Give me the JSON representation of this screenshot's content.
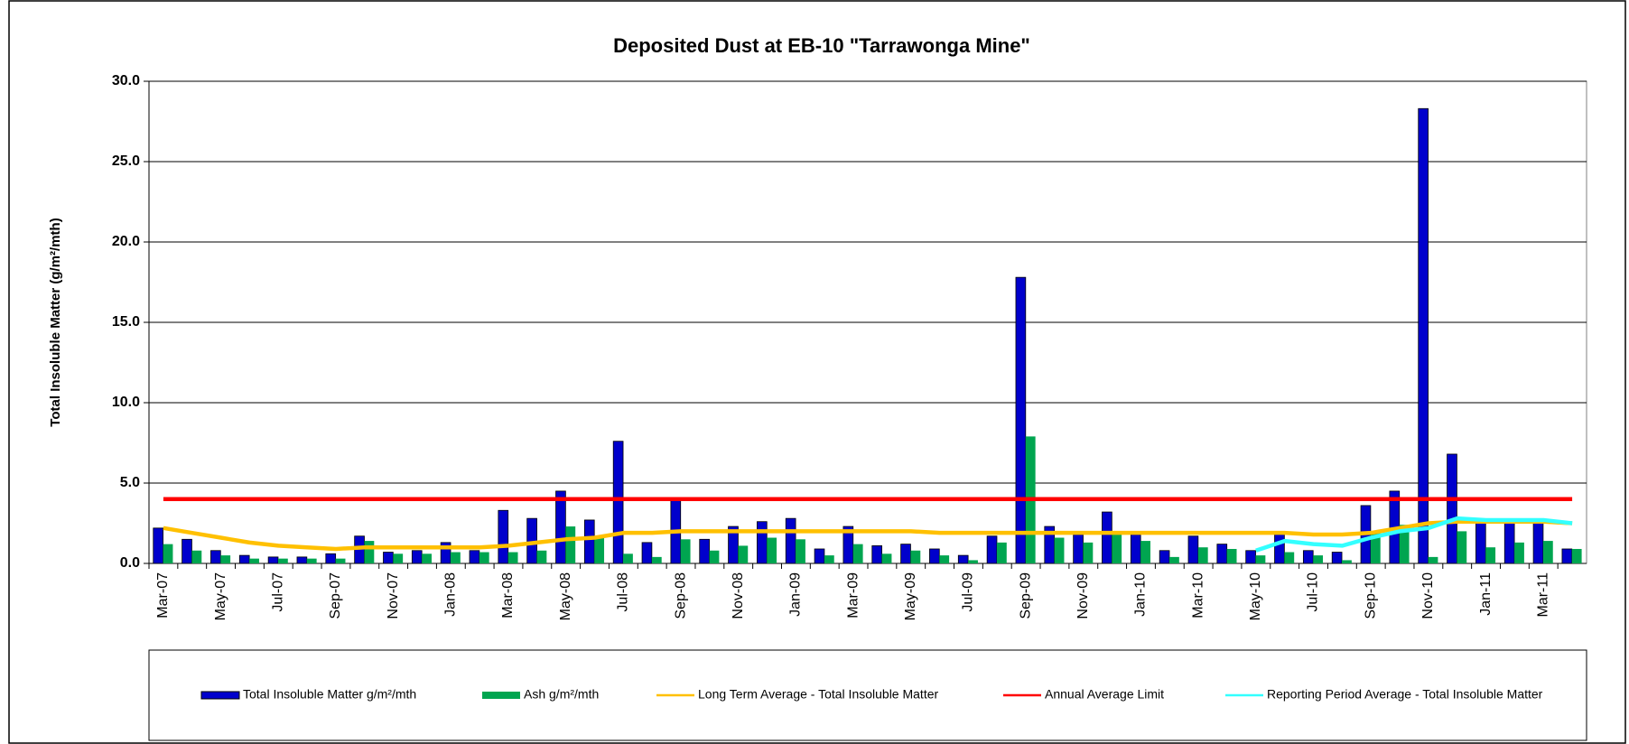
{
  "chart_data": {
    "type": "bar",
    "title": "Deposited Dust at EB-10 \"Tarrawonga Mine\"",
    "y_label": "Total Insoluble Matter  (g/m²/mth)",
    "categories": [
      "Mar-07",
      null,
      "May-07",
      null,
      "Jul-07",
      null,
      "Sep-07",
      null,
      "Nov-07",
      null,
      "Jan-08",
      null,
      "Mar-08",
      null,
      "May-08",
      null,
      "Jul-08",
      null,
      "Sep-08",
      null,
      "Nov-08",
      null,
      "Jan-09",
      null,
      "Mar-09",
      null,
      "May-09",
      null,
      "Jul-09",
      null,
      "Sep-09",
      null,
      "Nov-09",
      null,
      "Jan-10",
      null,
      "Mar-10",
      null,
      "May-10",
      null,
      "Jul-10",
      null,
      "Sep-10",
      null,
      "Nov-10",
      null,
      "Jan-11",
      null,
      "Mar-11",
      null
    ],
    "ylim": [
      0,
      30
    ],
    "yticks": [
      {
        "value": 0,
        "label": "0.0"
      },
      {
        "value": 5,
        "label": "5.0"
      },
      {
        "value": 10,
        "label": "10.0"
      },
      {
        "value": 15,
        "label": "15.0"
      },
      {
        "value": 20,
        "label": "20.0"
      },
      {
        "value": 25,
        "label": "25.0"
      },
      {
        "value": 30,
        "label": "30.0"
      }
    ],
    "grid": true,
    "legend": "bottom",
    "series": [
      {
        "name": "Total Insoluble Matter  g/m²/mth",
        "type": "bar",
        "color": "#0000cc",
        "values": [
          2.2,
          1.5,
          0.8,
          0.5,
          0.4,
          0.4,
          0.6,
          1.7,
          0.7,
          0.8,
          1.3,
          0.8,
          3.3,
          2.8,
          4.5,
          2.7,
          7.6,
          1.3,
          3.9,
          1.5,
          2.3,
          2.6,
          2.8,
          0.9,
          2.3,
          1.1,
          1.2,
          0.9,
          0.5,
          1.7,
          17.8,
          2.3,
          1.8,
          3.2,
          1.8,
          0.8,
          1.7,
          1.2,
          0.8,
          2.0,
          0.8,
          0.7,
          3.6,
          4.5,
          28.3,
          6.8,
          2.5,
          2.6,
          2.5,
          0.9
        ]
      },
      {
        "name": "Ash  g/m²/mth",
        "type": "bar",
        "color": "#00a550",
        "values": [
          1.2,
          0.8,
          0.5,
          0.3,
          0.3,
          0.3,
          0.3,
          1.4,
          0.6,
          0.6,
          0.7,
          0.7,
          0.7,
          0.8,
          2.3,
          1.6,
          0.6,
          0.4,
          1.5,
          0.8,
          1.1,
          1.6,
          1.5,
          0.5,
          1.2,
          0.6,
          0.8,
          0.5,
          0.2,
          1.3,
          7.9,
          1.6,
          1.3,
          1.8,
          1.4,
          0.4,
          1.0,
          0.9,
          0.5,
          0.7,
          0.5,
          0.2,
          2.0,
          2.4,
          0.4,
          2.0,
          1.0,
          1.3,
          1.4,
          0.9
        ]
      },
      {
        "name": "Long Term Average - Total Insoluble Matter",
        "type": "line",
        "color": "#ffc000",
        "values": [
          2.2,
          1.9,
          1.6,
          1.3,
          1.1,
          1.0,
          0.9,
          1.0,
          1.0,
          1.0,
          1.0,
          1.0,
          1.1,
          1.3,
          1.5,
          1.6,
          1.9,
          1.9,
          2.0,
          2.0,
          2.0,
          2.0,
          2.0,
          2.0,
          2.0,
          2.0,
          2.0,
          1.9,
          1.9,
          1.9,
          1.9,
          1.9,
          1.9,
          1.9,
          1.9,
          1.9,
          1.9,
          1.9,
          1.9,
          1.9,
          1.8,
          1.8,
          1.9,
          2.2,
          2.5,
          2.6,
          2.6,
          2.6,
          2.6,
          2.5
        ]
      },
      {
        "name": "Annual Average Limit",
        "type": "line",
        "color": "#ff0000",
        "values": [
          4,
          4,
          4,
          4,
          4,
          4,
          4,
          4,
          4,
          4,
          4,
          4,
          4,
          4,
          4,
          4,
          4,
          4,
          4,
          4,
          4,
          4,
          4,
          4,
          4,
          4,
          4,
          4,
          4,
          4,
          4,
          4,
          4,
          4,
          4,
          4,
          4,
          4,
          4,
          4,
          4,
          4,
          4,
          4,
          4,
          4,
          4,
          4,
          4,
          4
        ]
      },
      {
        "name": "Reporting Period Average - Total Insoluble Matter",
        "type": "line",
        "color": "#33ffff",
        "values": [
          null,
          null,
          null,
          null,
          null,
          null,
          null,
          null,
          null,
          null,
          null,
          null,
          null,
          null,
          null,
          null,
          null,
          null,
          null,
          null,
          null,
          null,
          null,
          null,
          null,
          null,
          null,
          null,
          null,
          null,
          null,
          null,
          null,
          null,
          null,
          null,
          null,
          null,
          0.8,
          1.4,
          1.2,
          1.1,
          1.6,
          2.0,
          2.2,
          2.8,
          2.7,
          2.7,
          2.7,
          2.5
        ]
      }
    ]
  }
}
